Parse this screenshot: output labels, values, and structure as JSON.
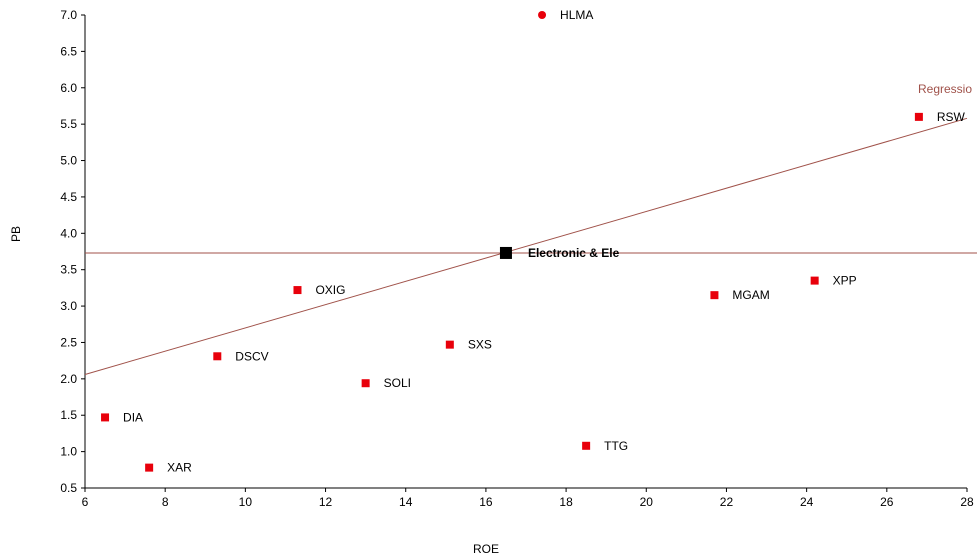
{
  "chart_data": {
    "type": "scatter",
    "title": "",
    "xlabel": "ROE",
    "ylabel": "PB",
    "xlim": [
      6,
      28
    ],
    "ylim": [
      0.5,
      7.0
    ],
    "x_ticks": [
      "6",
      "8",
      "10",
      "12",
      "14",
      "16",
      "18",
      "20",
      "22",
      "24",
      "26",
      "28"
    ],
    "y_ticks": [
      "0.5",
      "1.0",
      "1.5",
      "2.0",
      "2.5",
      "3.0",
      "3.5",
      "4.0",
      "4.5",
      "5.0",
      "5.5",
      "6.0",
      "6.5",
      "7.0"
    ],
    "grid": false,
    "points": [
      {
        "label": "HLMA",
        "x": 17.4,
        "y": 7.0,
        "marker": "circle"
      },
      {
        "label": "RSW",
        "x": 26.8,
        "y": 5.6,
        "marker": "square"
      },
      {
        "label": "XPP",
        "x": 24.2,
        "y": 3.35,
        "marker": "square"
      },
      {
        "label": "MGAM",
        "x": 21.7,
        "y": 3.15,
        "marker": "square"
      },
      {
        "label": "OXIG",
        "x": 11.3,
        "y": 3.22,
        "marker": "square"
      },
      {
        "label": "SXS",
        "x": 15.1,
        "y": 2.47,
        "marker": "square"
      },
      {
        "label": "DSCV",
        "x": 9.3,
        "y": 2.31,
        "marker": "square"
      },
      {
        "label": "SOLI",
        "x": 13.0,
        "y": 1.94,
        "marker": "square"
      },
      {
        "label": "DIA",
        "x": 6.5,
        "y": 1.47,
        "marker": "square"
      },
      {
        "label": "TTG",
        "x": 18.5,
        "y": 1.08,
        "marker": "square"
      },
      {
        "label": "XAR",
        "x": 7.6,
        "y": 0.78,
        "marker": "square"
      }
    ],
    "highlight": {
      "label": "Electronic & Ele",
      "x": 16.5,
      "y": 3.73
    },
    "reference_line_y": 3.73,
    "regression": {
      "label": "Regressio",
      "x_start": 6,
      "y_start": 2.06,
      "x_end": 28,
      "y_end": 5.58
    },
    "colors": {
      "points": "#e8000b",
      "highlight": "#000000",
      "regression": "#a0524a",
      "axis": "#000000"
    }
  }
}
